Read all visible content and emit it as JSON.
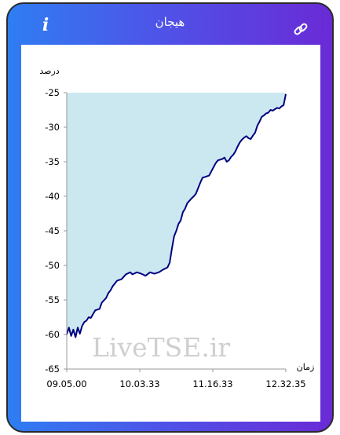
{
  "header": {
    "title": "هیجان",
    "info_icon": "info-icon",
    "link_icon": "link-icon"
  },
  "watermark": "LiveTSE.ir",
  "colors": {
    "gradient_start": "#2f7df2",
    "gradient_end": "#6a2ad6",
    "line": "#000080",
    "area": "#cbe8f0"
  },
  "chart_data": {
    "type": "area",
    "ylabel": "درصد",
    "xlabel": "زمان",
    "ylim": [
      -65,
      -25
    ],
    "yticks": [
      -25,
      -30,
      -35,
      -40,
      -45,
      -50,
      -55,
      -60,
      -65
    ],
    "xticks": [
      "09.05.00",
      "10.03.33",
      "11.16.33",
      "12.32.35"
    ],
    "grid": false,
    "series": [
      {
        "points": [
          [
            0.0,
            -60.0
          ],
          [
            0.01,
            -59.0
          ],
          [
            0.02,
            -60.2
          ],
          [
            0.03,
            -59.3
          ],
          [
            0.04,
            -60.4
          ],
          [
            0.05,
            -59.0
          ],
          [
            0.06,
            -59.9
          ],
          [
            0.07,
            -58.8
          ],
          [
            0.08,
            -58.2
          ],
          [
            0.09,
            -58.0
          ],
          [
            0.1,
            -57.5
          ],
          [
            0.11,
            -57.6
          ],
          [
            0.13,
            -56.5
          ],
          [
            0.15,
            -56.3
          ],
          [
            0.16,
            -55.4
          ],
          [
            0.18,
            -54.7
          ],
          [
            0.19,
            -54.0
          ],
          [
            0.2,
            -53.6
          ],
          [
            0.21,
            -53.0
          ],
          [
            0.23,
            -52.2
          ],
          [
            0.25,
            -52.0
          ],
          [
            0.27,
            -51.3
          ],
          [
            0.29,
            -51.0
          ],
          [
            0.3,
            -51.3
          ],
          [
            0.32,
            -51.0
          ],
          [
            0.34,
            -51.2
          ],
          [
            0.36,
            -51.5
          ],
          [
            0.38,
            -51.0
          ],
          [
            0.4,
            -51.2
          ],
          [
            0.42,
            -51.0
          ],
          [
            0.44,
            -50.6
          ],
          [
            0.46,
            -50.3
          ],
          [
            0.47,
            -49.6
          ],
          [
            0.48,
            -47.6
          ],
          [
            0.49,
            -45.8
          ],
          [
            0.5,
            -45.0
          ],
          [
            0.51,
            -44.0
          ],
          [
            0.52,
            -43.5
          ],
          [
            0.53,
            -42.3
          ],
          [
            0.54,
            -41.8
          ],
          [
            0.55,
            -41.0
          ],
          [
            0.57,
            -40.3
          ],
          [
            0.58,
            -40.0
          ],
          [
            0.59,
            -39.6
          ],
          [
            0.6,
            -38.8
          ],
          [
            0.61,
            -38.0
          ],
          [
            0.62,
            -37.3
          ],
          [
            0.63,
            -37.2
          ],
          [
            0.65,
            -37.0
          ],
          [
            0.66,
            -36.4
          ],
          [
            0.67,
            -35.8
          ],
          [
            0.68,
            -35.2
          ],
          [
            0.69,
            -34.8
          ],
          [
            0.71,
            -34.6
          ],
          [
            0.72,
            -34.4
          ],
          [
            0.73,
            -35.0
          ],
          [
            0.74,
            -34.8
          ],
          [
            0.75,
            -34.3
          ],
          [
            0.76,
            -34.0
          ],
          [
            0.77,
            -33.5
          ],
          [
            0.78,
            -32.8
          ],
          [
            0.79,
            -32.2
          ],
          [
            0.8,
            -31.8
          ],
          [
            0.81,
            -31.5
          ],
          [
            0.82,
            -31.3
          ],
          [
            0.83,
            -31.6
          ],
          [
            0.84,
            -31.7
          ],
          [
            0.85,
            -31.2
          ],
          [
            0.86,
            -30.8
          ],
          [
            0.87,
            -29.8
          ],
          [
            0.88,
            -29.2
          ],
          [
            0.89,
            -28.5
          ],
          [
            0.9,
            -28.3
          ],
          [
            0.91,
            -28.0
          ],
          [
            0.92,
            -27.9
          ],
          [
            0.93,
            -27.5
          ],
          [
            0.94,
            -27.6
          ],
          [
            0.95,
            -27.4
          ],
          [
            0.96,
            -27.2
          ],
          [
            0.97,
            -27.3
          ],
          [
            0.98,
            -27.0
          ],
          [
            0.99,
            -26.8
          ],
          [
            1.0,
            -25.2
          ]
        ]
      }
    ]
  }
}
